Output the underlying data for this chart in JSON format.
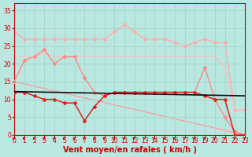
{
  "background_color": "#b8e8e0",
  "grid_color": "#aad8d0",
  "xlabel": "Vent moyen/en rafales ( km/h )",
  "xlabel_color": "#cc0000",
  "xlabel_fontsize": 7.0,
  "tick_color": "#cc0000",
  "tick_fontsize": 5.5,
  "ylim": [
    0,
    37
  ],
  "xlim": [
    0,
    23
  ],
  "yticks": [
    0,
    5,
    10,
    15,
    20,
    25,
    30,
    35
  ],
  "xticks": [
    0,
    1,
    2,
    3,
    4,
    5,
    6,
    7,
    8,
    9,
    10,
    11,
    12,
    13,
    14,
    15,
    16,
    17,
    18,
    19,
    20,
    21,
    22,
    23
  ],
  "lines": [
    {
      "x": [
        0,
        1,
        2,
        3,
        4,
        5,
        6,
        7,
        8,
        9,
        10,
        11,
        12,
        13,
        14,
        15,
        16,
        17,
        18,
        19,
        20,
        21,
        22,
        23
      ],
      "y": [
        29,
        27,
        27,
        27,
        27,
        27,
        27,
        27,
        27,
        27,
        29,
        31,
        29,
        27,
        27,
        27,
        26,
        25,
        26,
        27,
        26,
        26,
        7,
        7
      ],
      "color": "#ffaaaa",
      "linewidth": 0.9,
      "marker": "D",
      "markersize": 2.0,
      "zorder": 2
    },
    {
      "x": [
        0,
        1,
        2,
        3,
        4,
        5,
        6,
        7,
        8,
        9,
        10,
        11,
        12,
        13,
        14,
        15,
        16,
        17,
        18,
        19,
        20,
        21,
        22,
        23
      ],
      "y": [
        22,
        22,
        22,
        23,
        22,
        22,
        22,
        22,
        22,
        22,
        22,
        22,
        22,
        22,
        22,
        22,
        22,
        22,
        22,
        22,
        22,
        19,
        7,
        7
      ],
      "color": "#ffbbbb",
      "linewidth": 0.9,
      "marker": null,
      "markersize": 0,
      "zorder": 2
    },
    {
      "x": [
        0,
        1,
        2,
        3,
        4,
        5,
        6,
        7,
        8,
        9,
        10,
        11,
        12,
        13,
        14,
        15,
        16,
        17,
        18,
        19,
        20,
        21,
        22,
        23
      ],
      "y": [
        15,
        21,
        22,
        24,
        20,
        22,
        22,
        16,
        12,
        11,
        12,
        12,
        12,
        12,
        12,
        12,
        12,
        12,
        12,
        19,
        10,
        5,
        1,
        0
      ],
      "color": "#ff8888",
      "linewidth": 1.0,
      "marker": "D",
      "markersize": 2.0,
      "zorder": 3
    },
    {
      "x": [
        0,
        1,
        2,
        3,
        4,
        5,
        6,
        7,
        8,
        9,
        10,
        11,
        12,
        13,
        14,
        15,
        16,
        17,
        18,
        19,
        20,
        21,
        22,
        23
      ],
      "y": [
        12,
        12,
        11,
        10,
        10,
        9,
        9,
        4,
        8,
        11,
        12,
        12,
        12,
        12,
        12,
        12,
        12,
        12,
        12,
        11,
        10,
        10,
        0,
        0
      ],
      "color": "#dd2222",
      "linewidth": 1.1,
      "marker": "D",
      "markersize": 2.0,
      "zorder": 4
    },
    {
      "x": [
        0,
        23
      ],
      "y": [
        15,
        0
      ],
      "color": "#ff9999",
      "linewidth": 0.9,
      "marker": null,
      "markersize": 0,
      "zorder": 1
    },
    {
      "x": [
        0,
        23
      ],
      "y": [
        12.2,
        11.0
      ],
      "color": "#111111",
      "linewidth": 1.2,
      "marker": null,
      "markersize": 0,
      "zorder": 5
    }
  ],
  "arrow_color": "#cc0000"
}
